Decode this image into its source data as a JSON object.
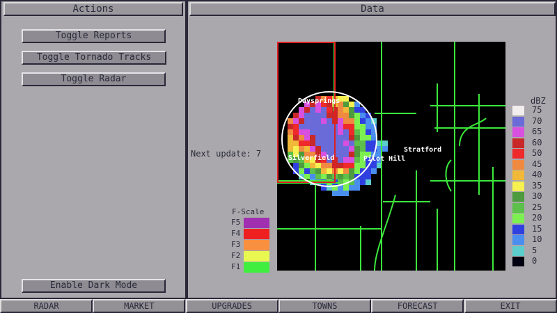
{
  "actions": {
    "title": "Actions",
    "buttons": [
      "Toggle Reports",
      "Toggle Tornado Tracks",
      "Toggle Radar"
    ],
    "dark_mode": "Enable Dark Mode"
  },
  "data": {
    "title": "Data",
    "next_update_label": "Next update: 7",
    "towns": [
      "Daysprings",
      "Silverfield",
      "Pilot Hill",
      "Stratford"
    ],
    "dbz": {
      "unit": "dBZ",
      "levels": [
        {
          "v": "75",
          "c": "#f2eeee"
        },
        {
          "v": "70",
          "c": "#6a6ad8"
        },
        {
          "v": "65",
          "c": "#d850e0"
        },
        {
          "v": "60",
          "c": "#c82828"
        },
        {
          "v": "50",
          "c": "#ee2a2a"
        },
        {
          "v": "45",
          "c": "#f08a40"
        },
        {
          "v": "40",
          "c": "#f2b83a"
        },
        {
          "v": "35",
          "c": "#f6f050"
        },
        {
          "v": "30",
          "c": "#4e9a3e"
        },
        {
          "v": "25",
          "c": "#5cc04a"
        },
        {
          "v": "20",
          "c": "#7cf050"
        },
        {
          "v": "15",
          "c": "#3040e0"
        },
        {
          "v": "10",
          "c": "#4a8ef0"
        },
        {
          "v": "5",
          "c": "#5ccccc"
        },
        {
          "v": "0",
          "c": "#000010"
        }
      ]
    },
    "fscale": {
      "title": "F-Scale",
      "levels": [
        {
          "v": "F5",
          "c": "#a030b0"
        },
        {
          "v": "F4",
          "c": "#ee2020"
        },
        {
          "v": "F3",
          "c": "#f89040"
        },
        {
          "v": "F2",
          "c": "#e8f850"
        },
        {
          "v": "F1",
          "c": "#40ee40"
        }
      ]
    }
  },
  "nav": [
    "RADAR",
    "MARKET",
    "UPGRADES",
    "TOWNS",
    "FORECAST",
    "EXIT"
  ]
}
